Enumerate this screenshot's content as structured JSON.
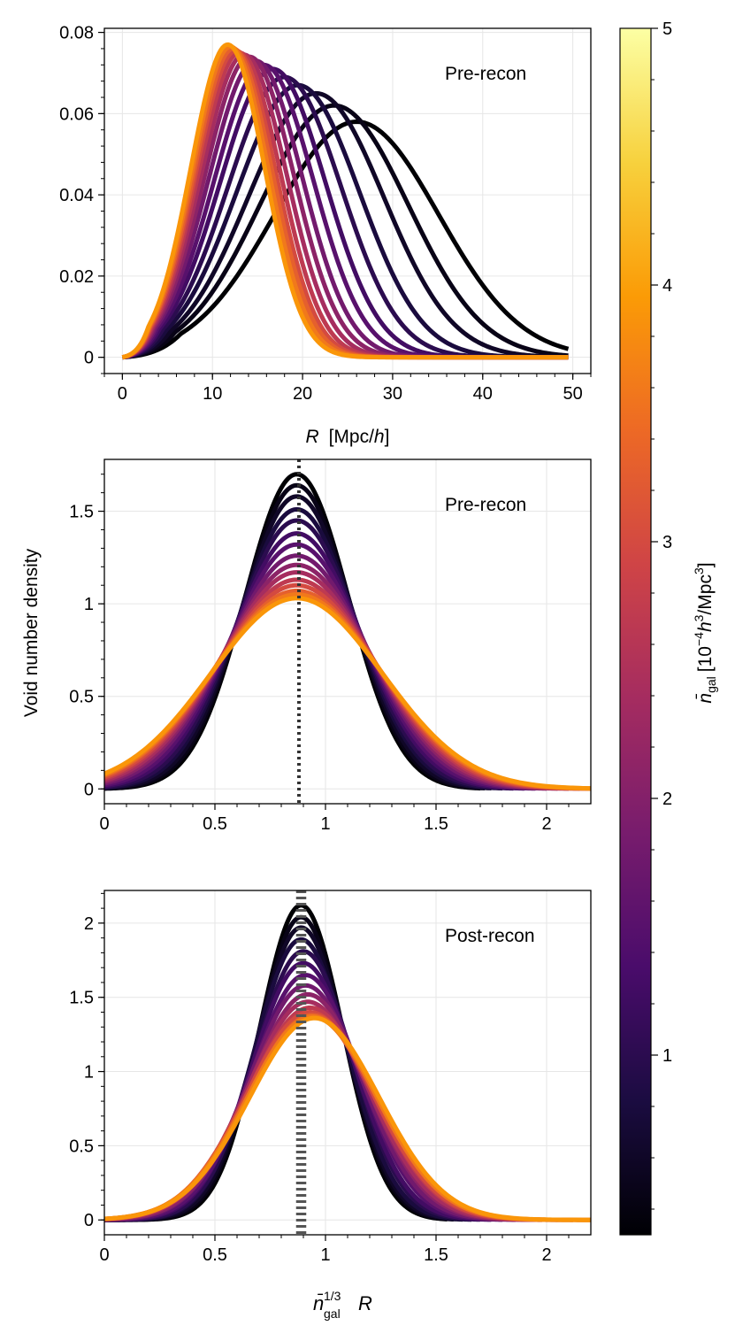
{
  "figure": {
    "shared_ylabel": "Void number density",
    "colorbar": {
      "label_main": "n̄",
      "label_sub": "gal",
      "label_units_pre": "[10",
      "label_exp1": "−4",
      "label_h": "h",
      "label_exp2": "3",
      "label_mid": "/Mpc",
      "label_exp3": "3",
      "label_close": "]",
      "colormap": "inferno-truncated",
      "stops": [
        "#000004",
        "#1b0c41",
        "#4a0c6b",
        "#781c6d",
        "#a52c60",
        "#cf4446",
        "#ed6925",
        "#fb9b06",
        "#f7d13d",
        "#fcffa4"
      ],
      "vmin": 0.3,
      "vmax": 5,
      "ticks": [
        1,
        2,
        3,
        4,
        5
      ],
      "tick_labels": [
        "1",
        "2",
        "3",
        "4",
        "5"
      ]
    }
  },
  "chart_data": [
    {
      "type": "line",
      "panel": "top",
      "annotation": "Pre-recon",
      "xlabel_italic": "R",
      "xlabel_units": "[Mpc/",
      "xlabel_h": "h",
      "xlabel_close": "]",
      "ylabel": "",
      "xlim": [
        -2,
        52
      ],
      "ylim": [
        -0.004,
        0.081
      ],
      "xticks": [
        0,
        10,
        20,
        30,
        40,
        50
      ],
      "xtick_labels": [
        "0",
        "10",
        "20",
        "30",
        "40",
        "50"
      ],
      "yticks": [
        0,
        0.02,
        0.04,
        0.06,
        0.08
      ],
      "ytick_labels": [
        "0",
        "0.02",
        "0.04",
        "0.06",
        "0.08"
      ],
      "grid": true,
      "curve_model": "truncated gaussian in R, one curve per n_gal",
      "series": [
        {
          "name": "n_gal=0.30",
          "n_gal": 0.3,
          "peak_x": 26.0,
          "peak_y": 0.058,
          "x_start": 0,
          "x_end": 49.5
        },
        {
          "name": "n_gal=0.45",
          "n_gal": 0.45,
          "peak_x": 23.5,
          "peak_y": 0.062,
          "x_start": 0,
          "x_end": 49.5
        },
        {
          "name": "n_gal=0.60",
          "n_gal": 0.6,
          "peak_x": 21.5,
          "peak_y": 0.065,
          "x_start": 0,
          "x_end": 49.5
        },
        {
          "name": "n_gal=0.80",
          "n_gal": 0.8,
          "peak_x": 19.5,
          "peak_y": 0.067,
          "x_start": 0,
          "x_end": 49.5
        },
        {
          "name": "n_gal=1.00",
          "n_gal": 1.0,
          "peak_x": 18.0,
          "peak_y": 0.069,
          "x_start": 0,
          "x_end": 49.5
        },
        {
          "name": "n_gal=1.25",
          "n_gal": 1.25,
          "peak_x": 16.7,
          "peak_y": 0.071,
          "x_start": 0,
          "x_end": 49.5
        },
        {
          "name": "n_gal=1.50",
          "n_gal": 1.5,
          "peak_x": 15.7,
          "peak_y": 0.072,
          "x_start": 0,
          "x_end": 49.5
        },
        {
          "name": "n_gal=1.80",
          "n_gal": 1.8,
          "peak_x": 14.8,
          "peak_y": 0.073,
          "x_start": 0,
          "x_end": 49.5
        },
        {
          "name": "n_gal=2.10",
          "n_gal": 2.1,
          "peak_x": 14.1,
          "peak_y": 0.074,
          "x_start": 0,
          "x_end": 49.5
        },
        {
          "name": "n_gal=2.40",
          "n_gal": 2.4,
          "peak_x": 13.5,
          "peak_y": 0.0745,
          "x_start": 0,
          "x_end": 49.5
        },
        {
          "name": "n_gal=2.70",
          "n_gal": 2.7,
          "peak_x": 13.0,
          "peak_y": 0.075,
          "x_start": 0,
          "x_end": 49.5
        },
        {
          "name": "n_gal=3.00",
          "n_gal": 3.0,
          "peak_x": 12.6,
          "peak_y": 0.0755,
          "x_start": 0,
          "x_end": 49.5
        },
        {
          "name": "n_gal=3.30",
          "n_gal": 3.3,
          "peak_x": 12.3,
          "peak_y": 0.076,
          "x_start": 0,
          "x_end": 49.5
        },
        {
          "name": "n_gal=3.60",
          "n_gal": 3.6,
          "peak_x": 12.0,
          "peak_y": 0.0765,
          "x_start": 0,
          "x_end": 49.5
        },
        {
          "name": "n_gal=3.90",
          "n_gal": 3.9,
          "peak_x": 11.7,
          "peak_y": 0.077,
          "x_start": 0,
          "x_end": 49.5
        }
      ]
    },
    {
      "type": "line",
      "panel": "middle",
      "annotation": "Pre-recon",
      "xlabel": "",
      "ylabel": "Void number density",
      "xlim": [
        0,
        2.2
      ],
      "ylim": [
        -0.08,
        1.78
      ],
      "xticks": [
        0,
        0.5,
        1,
        1.5,
        2
      ],
      "xtick_labels": [
        "0",
        "0.5",
        "1",
        "1.5",
        "2"
      ],
      "yticks": [
        0,
        0.5,
        1,
        1.5
      ],
      "ytick_labels": [
        "0",
        "0.5",
        "1",
        "1.5"
      ],
      "grid": true,
      "reference_line": {
        "x": 0.88,
        "style": "dotted",
        "color": "#333333"
      },
      "curve_model": "gaussian in scaled radius, one curve per n_gal",
      "series": [
        {
          "name": "n_gal=0.30",
          "n_gal": 0.3,
          "peak_x": 0.87,
          "peak_y": 1.7,
          "x_start": 0,
          "x_end": 1.7
        },
        {
          "name": "n_gal=0.45",
          "n_gal": 0.45,
          "peak_x": 0.87,
          "peak_y": 1.64,
          "x_start": 0,
          "x_end": 1.72
        },
        {
          "name": "n_gal=0.60",
          "n_gal": 0.6,
          "peak_x": 0.87,
          "peak_y": 1.58,
          "x_start": 0,
          "x_end": 1.75
        },
        {
          "name": "n_gal=0.80",
          "n_gal": 0.8,
          "peak_x": 0.87,
          "peak_y": 1.51,
          "x_start": 0,
          "x_end": 1.8
        },
        {
          "name": "n_gal=1.00",
          "n_gal": 1.0,
          "peak_x": 0.87,
          "peak_y": 1.45,
          "x_start": 0,
          "x_end": 1.85
        },
        {
          "name": "n_gal=1.25",
          "n_gal": 1.25,
          "peak_x": 0.87,
          "peak_y": 1.38,
          "x_start": 0,
          "x_end": 1.9
        },
        {
          "name": "n_gal=1.50",
          "n_gal": 1.5,
          "peak_x": 0.87,
          "peak_y": 1.32,
          "x_start": 0,
          "x_end": 1.95
        },
        {
          "name": "n_gal=1.80",
          "n_gal": 1.8,
          "peak_x": 0.87,
          "peak_y": 1.26,
          "x_start": 0,
          "x_end": 2.0
        },
        {
          "name": "n_gal=2.10",
          "n_gal": 2.1,
          "peak_x": 0.87,
          "peak_y": 1.21,
          "x_start": 0,
          "x_end": 2.05
        },
        {
          "name": "n_gal=2.40",
          "n_gal": 2.4,
          "peak_x": 0.87,
          "peak_y": 1.17,
          "x_start": 0,
          "x_end": 2.1
        },
        {
          "name": "n_gal=2.70",
          "n_gal": 2.7,
          "peak_x": 0.87,
          "peak_y": 1.13,
          "x_start": 0,
          "x_end": 2.15
        },
        {
          "name": "n_gal=3.00",
          "n_gal": 3.0,
          "peak_x": 0.87,
          "peak_y": 1.1,
          "x_start": 0,
          "x_end": 2.2
        },
        {
          "name": "n_gal=3.30",
          "n_gal": 3.3,
          "peak_x": 0.87,
          "peak_y": 1.07,
          "x_start": 0,
          "x_end": 2.2
        },
        {
          "name": "n_gal=3.60",
          "n_gal": 3.6,
          "peak_x": 0.87,
          "peak_y": 1.05,
          "x_start": 0,
          "x_end": 2.2
        },
        {
          "name": "n_gal=3.90",
          "n_gal": 3.9,
          "peak_x": 0.87,
          "peak_y": 1.03,
          "x_start": 0,
          "x_end": 2.2
        }
      ]
    },
    {
      "type": "line",
      "panel": "bottom",
      "annotation": "Post-recon",
      "xlabel_main": "n̄",
      "xlabel_exp": "1/3",
      "xlabel_sub": "gal",
      "xlabel_var": "R",
      "ylabel": "",
      "xlim": [
        0,
        2.2
      ],
      "ylim": [
        -0.1,
        2.22
      ],
      "xticks": [
        0,
        0.5,
        1,
        1.5,
        2
      ],
      "xtick_labels": [
        "0",
        "0.5",
        "1",
        "1.5",
        "2"
      ],
      "yticks": [
        0,
        0.5,
        1,
        1.5,
        2
      ],
      "ytick_labels": [
        "0",
        "0.5",
        "1",
        "1.5",
        "2"
      ],
      "grid": true,
      "reference_lines": [
        {
          "x": 0.875,
          "style": "dotted",
          "color": "#555555"
        },
        {
          "x": 0.89,
          "style": "dotted",
          "color": "#555555"
        },
        {
          "x": 0.905,
          "style": "dotted",
          "color": "#555555"
        }
      ],
      "curve_model": "gaussian in scaled radius, one curve per n_gal",
      "series": [
        {
          "name": "n_gal=0.30",
          "n_gal": 0.3,
          "peak_x": 0.89,
          "peak_y": 2.12,
          "x_start": 0,
          "x_end": 1.55
        },
        {
          "name": "n_gal=0.45",
          "n_gal": 0.45,
          "peak_x": 0.89,
          "peak_y": 2.04,
          "x_start": 0,
          "x_end": 1.58
        },
        {
          "name": "n_gal=0.60",
          "n_gal": 0.6,
          "peak_x": 0.89,
          "peak_y": 1.97,
          "x_start": 0,
          "x_end": 1.62
        },
        {
          "name": "n_gal=0.80",
          "n_gal": 0.8,
          "peak_x": 0.89,
          "peak_y": 1.89,
          "x_start": 0,
          "x_end": 1.66
        },
        {
          "name": "n_gal=1.00",
          "n_gal": 1.0,
          "peak_x": 0.9,
          "peak_y": 1.81,
          "x_start": 0,
          "x_end": 1.7
        },
        {
          "name": "n_gal=1.25",
          "n_gal": 1.25,
          "peak_x": 0.9,
          "peak_y": 1.73,
          "x_start": 0,
          "x_end": 1.75
        },
        {
          "name": "n_gal=1.50",
          "n_gal": 1.5,
          "peak_x": 0.91,
          "peak_y": 1.65,
          "x_start": 0,
          "x_end": 1.8
        },
        {
          "name": "n_gal=1.80",
          "n_gal": 1.8,
          "peak_x": 0.91,
          "peak_y": 1.58,
          "x_start": 0,
          "x_end": 1.86
        },
        {
          "name": "n_gal=2.10",
          "n_gal": 2.1,
          "peak_x": 0.92,
          "peak_y": 1.52,
          "x_start": 0,
          "x_end": 1.92
        },
        {
          "name": "n_gal=2.40",
          "n_gal": 2.4,
          "peak_x": 0.92,
          "peak_y": 1.47,
          "x_start": 0,
          "x_end": 1.98
        },
        {
          "name": "n_gal=2.70",
          "n_gal": 2.7,
          "peak_x": 0.93,
          "peak_y": 1.43,
          "x_start": 0,
          "x_end": 2.05
        },
        {
          "name": "n_gal=3.00",
          "n_gal": 3.0,
          "peak_x": 0.93,
          "peak_y": 1.4,
          "x_start": 0,
          "x_end": 2.12
        },
        {
          "name": "n_gal=3.30",
          "n_gal": 3.3,
          "peak_x": 0.94,
          "peak_y": 1.38,
          "x_start": 0,
          "x_end": 2.2
        },
        {
          "name": "n_gal=3.60",
          "n_gal": 3.6,
          "peak_x": 0.94,
          "peak_y": 1.37,
          "x_start": 0,
          "x_end": 2.2
        },
        {
          "name": "n_gal=3.90",
          "n_gal": 3.9,
          "peak_x": 0.95,
          "peak_y": 1.36,
          "x_start": 0,
          "x_end": 2.2
        }
      ]
    }
  ]
}
